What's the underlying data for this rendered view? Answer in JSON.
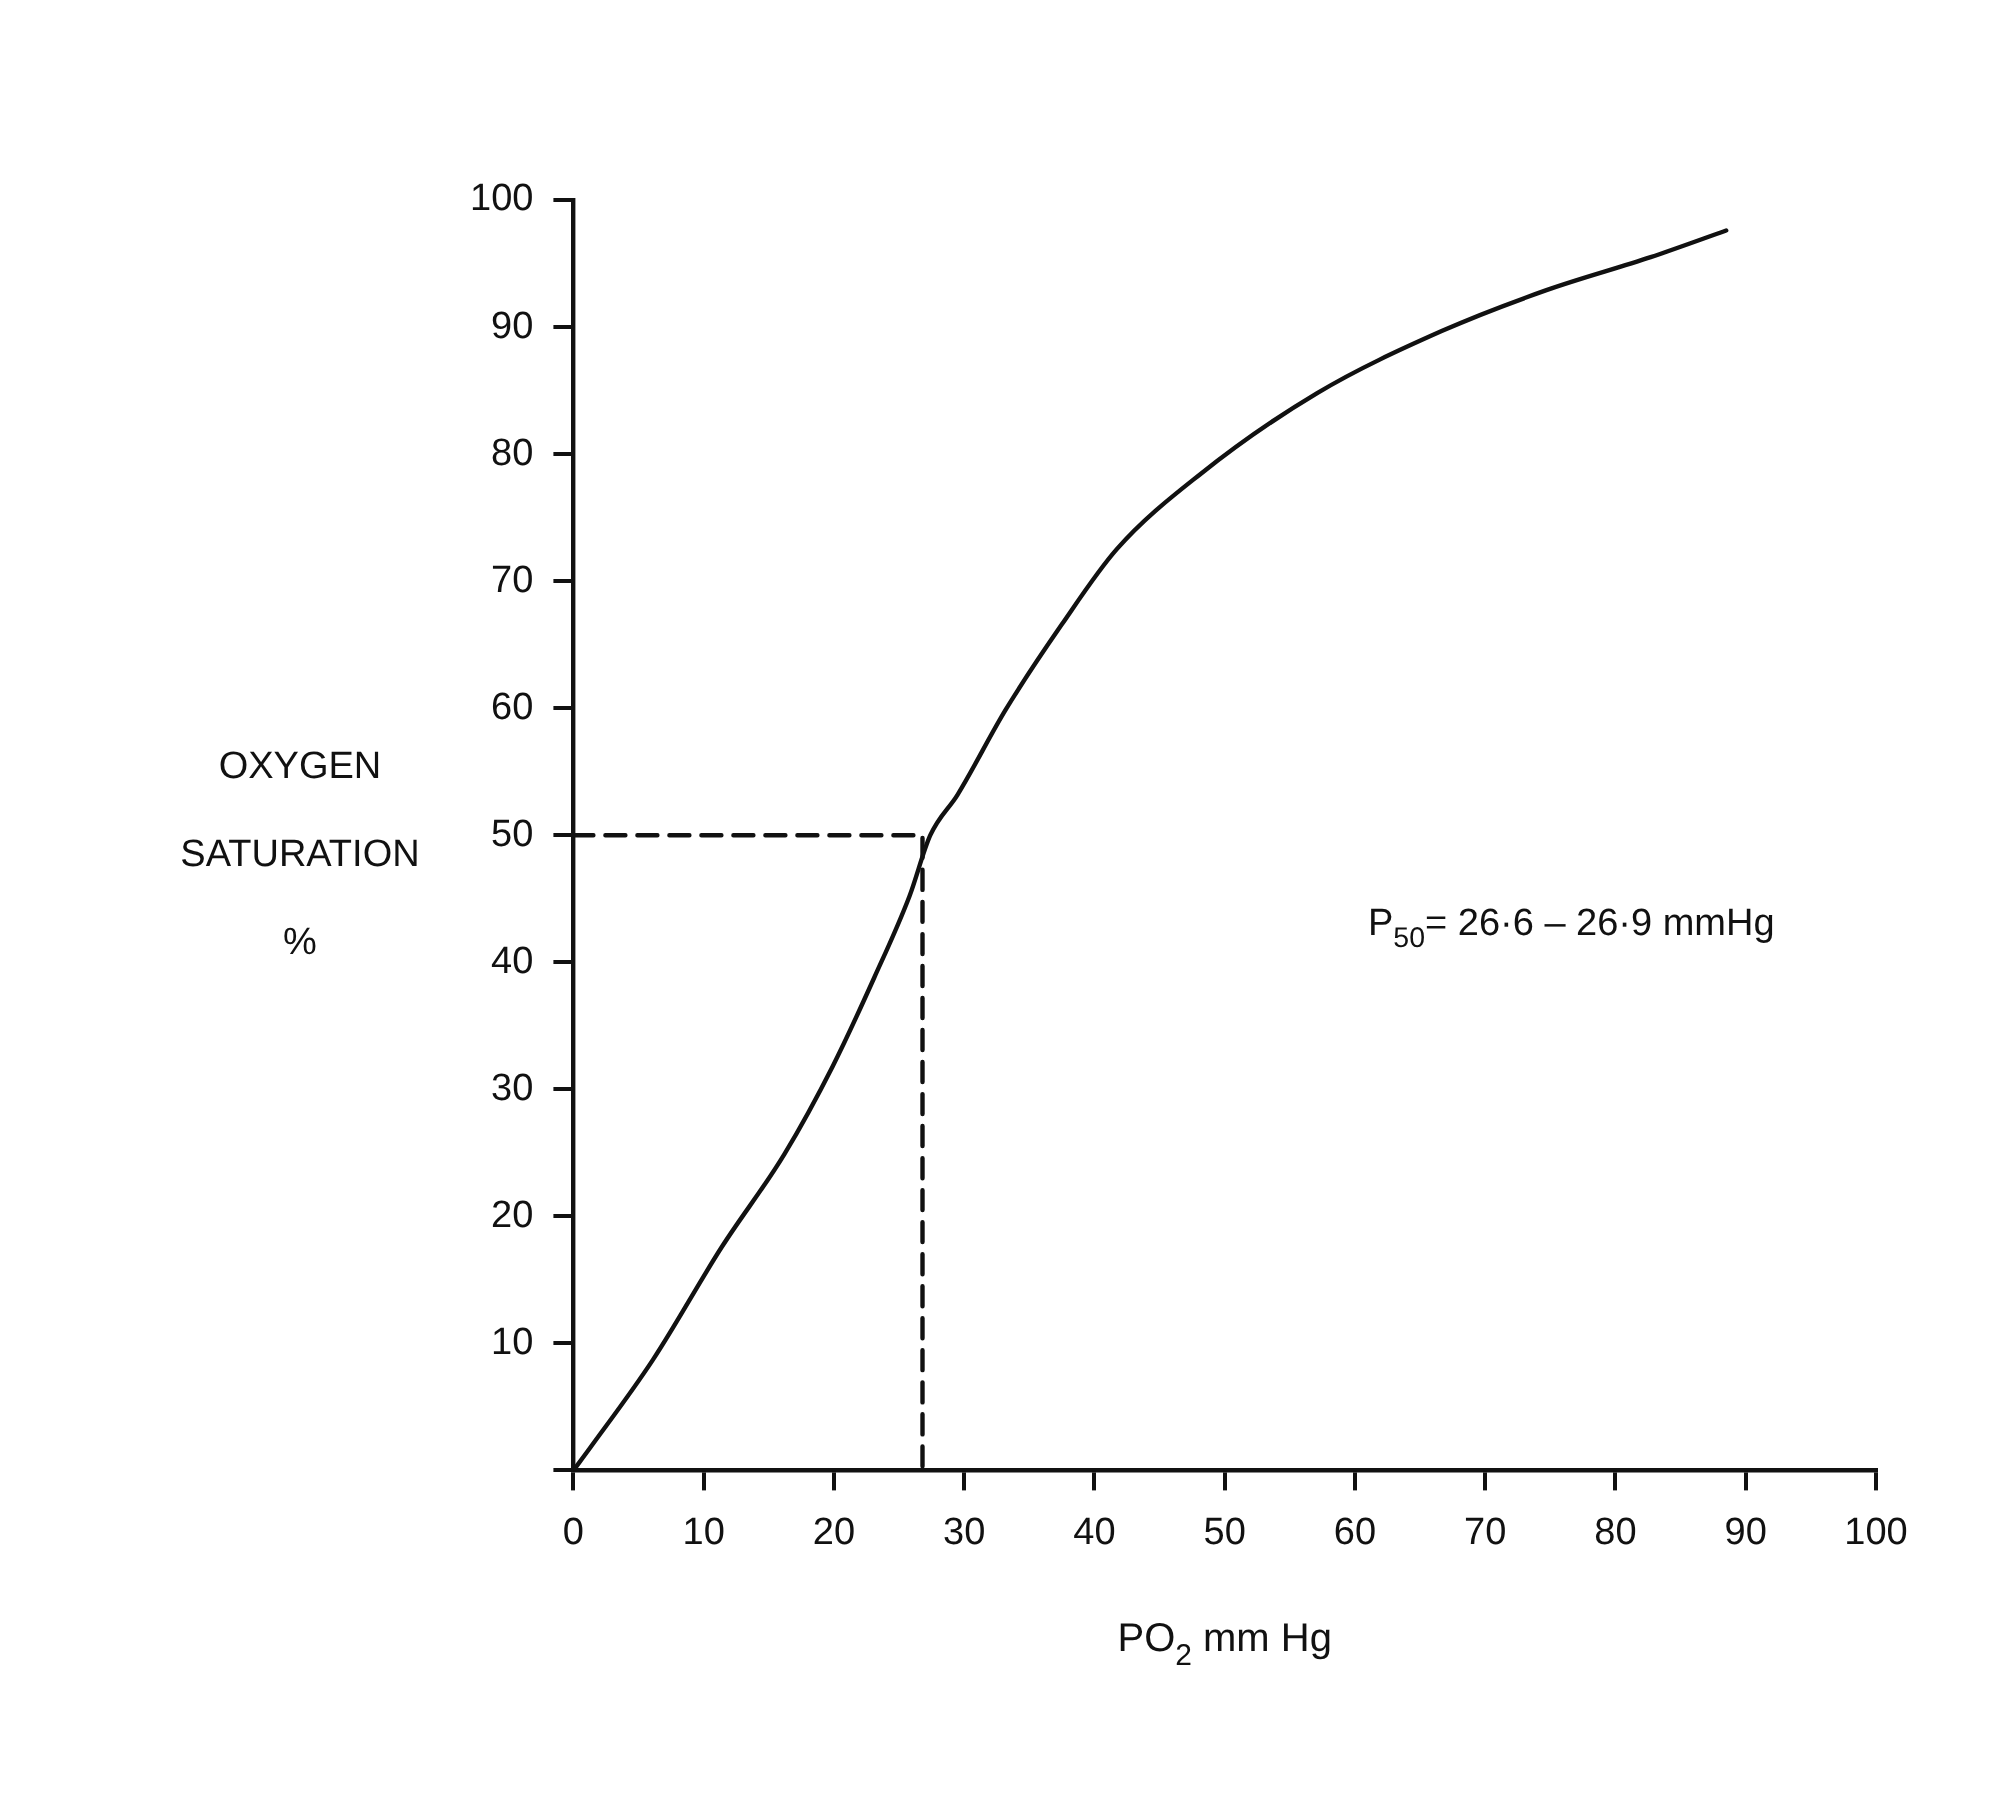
{
  "chart_data": {
    "type": "line",
    "xlabel": "PO$_{2}$ mm Hg",
    "ylabel": "OXYGEN\nSATURATION\n%",
    "annotations": [
      "P$_{50}$= 26·6 – 26·9 mmHg"
    ],
    "series": [
      {
        "color": "#111111",
        "line_style": "solid",
        "x": [
          0,
          1.3,
          6.1,
          11.4,
          16.2,
          19.9,
          23.1,
          25.8,
          27.4,
          29.5,
          33.2,
          37.5,
          41.7,
          48.1,
          57.1,
          66.7,
          74.7,
          82.7,
          88.5
        ],
        "values": [
          0,
          1.8,
          8.7,
          17.6,
          24.9,
          31.8,
          38.8,
          45.2,
          50,
          53.2,
          59.9,
          66.6,
          72.5,
          78.4,
          84.8,
          89.7,
          92.9,
          95.5,
          97.6
        ]
      },
      {
        "color": "#111111",
        "line_style": "dashed",
        "x": [
          0,
          26.8,
          26.8
        ],
        "values": [
          50,
          50,
          0
        ]
      }
    ],
    "xlim": [
      0,
      100
    ],
    "xticks": [
      0,
      10,
      20,
      30,
      40,
      50,
      60,
      70,
      80,
      90,
      100
    ],
    "ylim": [
      0,
      100
    ],
    "yticks": [
      {
        "value": 0,
        "label": null
      },
      10,
      20,
      30,
      40,
      50,
      60,
      70,
      80,
      90,
      100
    ],
    "grid": false,
    "legend": false,
    "marker": "none"
  }
}
